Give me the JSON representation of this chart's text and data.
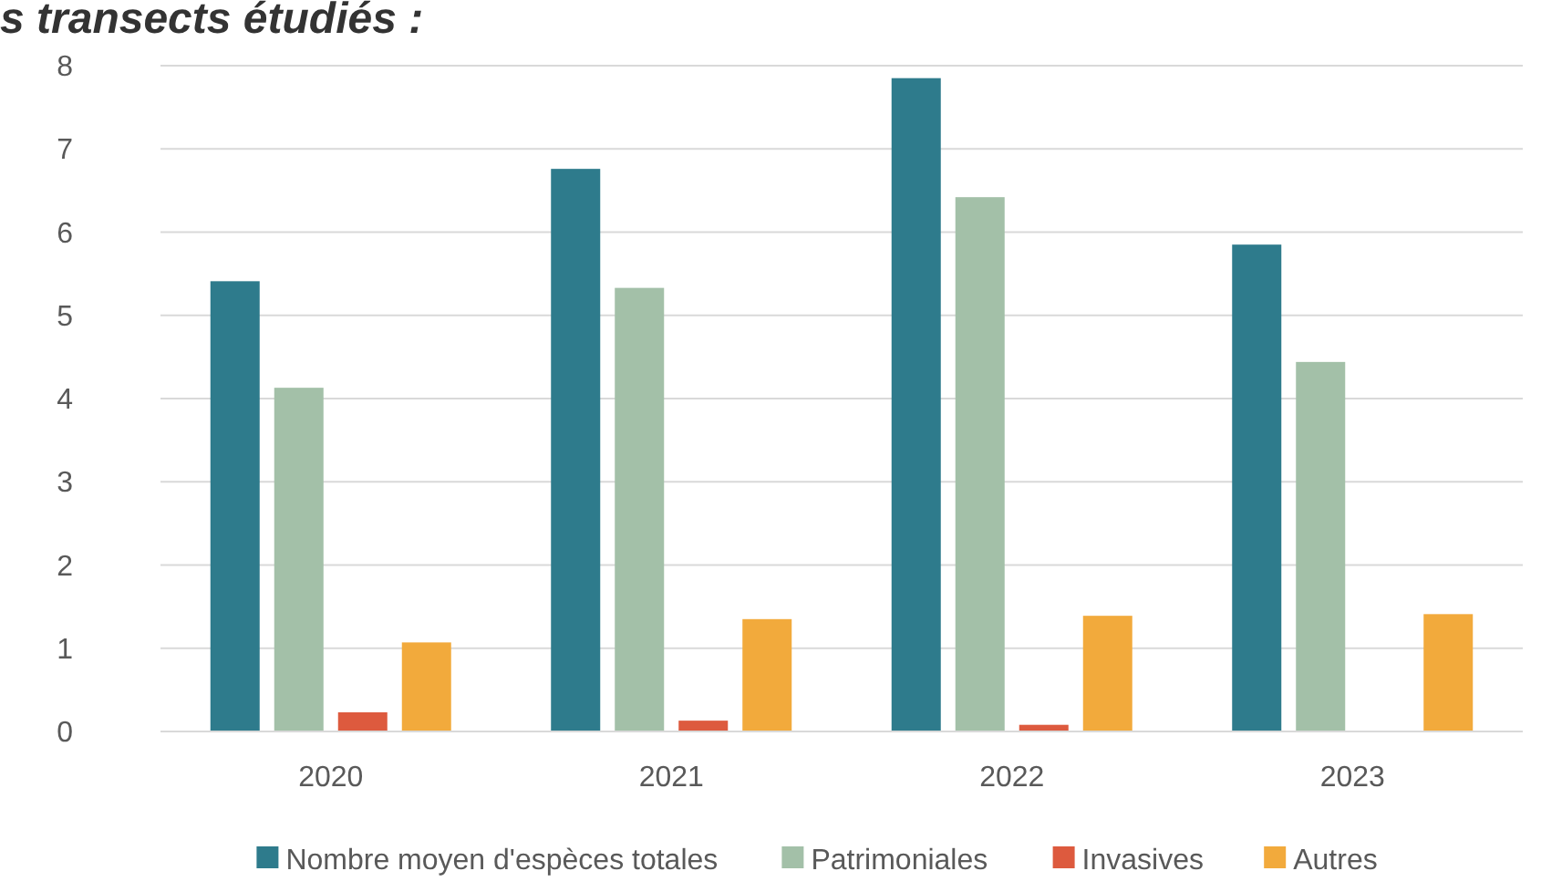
{
  "chart_data": {
    "type": "bar",
    "title": "s transects étudiés :",
    "categories": [
      "2020",
      "2021",
      "2022",
      "2023"
    ],
    "series": [
      {
        "name": "Nombre moyen d'espèces totales",
        "color": "#2e7b8c",
        "values": [
          5.41,
          6.76,
          7.85,
          5.85
        ]
      },
      {
        "name": "Patrimoniales",
        "color": "#a3c0a8",
        "values": [
          4.13,
          5.33,
          6.42,
          4.44
        ]
      },
      {
        "name": "Invasives",
        "color": "#dd5a3e",
        "values": [
          0.23,
          0.13,
          0.08,
          0
        ]
      },
      {
        "name": "Autres",
        "color": "#f2aa3c",
        "values": [
          1.07,
          1.35,
          1.39,
          1.41
        ]
      }
    ],
    "ylim": [
      0,
      8
    ],
    "yticks": [
      0,
      1,
      2,
      3,
      4,
      5,
      6,
      7,
      8
    ],
    "grid": "y",
    "legend": "bottom"
  }
}
